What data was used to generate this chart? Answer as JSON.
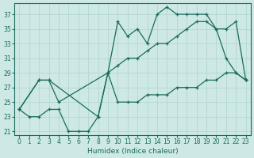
{
  "xlabel": "Humidex (Indice chaleur)",
  "xlim": [
    -0.5,
    23.5
  ],
  "ylim": [
    20.5,
    38.5
  ],
  "yticks": [
    21,
    23,
    25,
    27,
    29,
    31,
    33,
    35,
    37
  ],
  "xticks": [
    0,
    1,
    2,
    3,
    4,
    5,
    6,
    7,
    8,
    9,
    10,
    11,
    12,
    13,
    14,
    15,
    16,
    17,
    18,
    19,
    20,
    21,
    22,
    23
  ],
  "bg_color": "#cde8e5",
  "line_color": "#1a6b5e",
  "grid_color": "#aed4d0",
  "line1_x": [
    0,
    2,
    3,
    4,
    9,
    10,
    11,
    12,
    13,
    14,
    15,
    16,
    17,
    18,
    19,
    20,
    21,
    22,
    23
  ],
  "line1_y": [
    24,
    28,
    28,
    25,
    29,
    30,
    31,
    31,
    32,
    33,
    33,
    34,
    35,
    36,
    36,
    35,
    35,
    36,
    28
  ],
  "line2_x": [
    0,
    1,
    2,
    3,
    4,
    5,
    6,
    7,
    8,
    9,
    10,
    11,
    12,
    13,
    14,
    15,
    16,
    17,
    18,
    19,
    20,
    21,
    22,
    23
  ],
  "line2_y": [
    24,
    23,
    23,
    24,
    24,
    21,
    21,
    21,
    23,
    29,
    25,
    25,
    25,
    26,
    26,
    26,
    27,
    27,
    27,
    28,
    28,
    29,
    29,
    28
  ],
  "line3_x": [
    0,
    2,
    3,
    8,
    9,
    10,
    11,
    12,
    13,
    14,
    15,
    16,
    17,
    18,
    19,
    20,
    21,
    22,
    23
  ],
  "line3_y": [
    24,
    28,
    28,
    23,
    29,
    36,
    34,
    35,
    33,
    37,
    38,
    37,
    37,
    37,
    37,
    35,
    31,
    29,
    28
  ]
}
